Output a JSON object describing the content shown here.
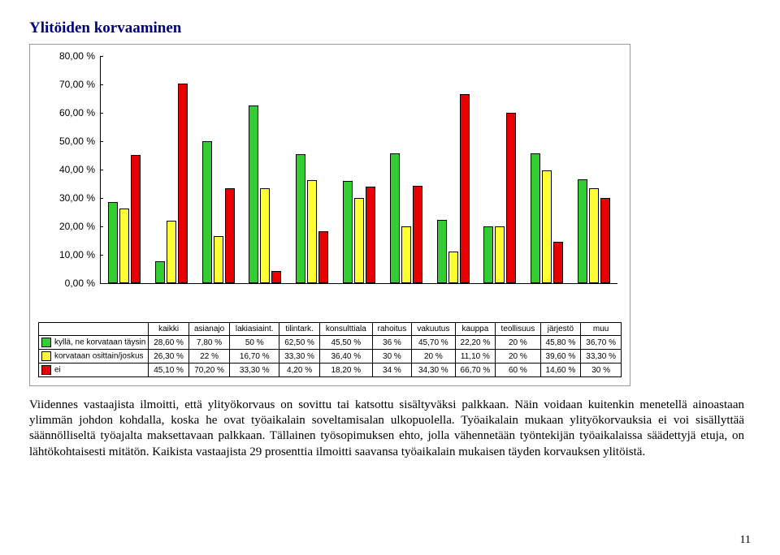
{
  "title": "Ylitöiden korvaaminen",
  "page_number": "11",
  "y_axis": {
    "ticks": [
      "0,00 %",
      "10,00 %",
      "20,00 %",
      "30,00 %",
      "40,00 %",
      "50,00 %",
      "60,00 %",
      "70,00 %",
      "80,00 %"
    ],
    "max": 80
  },
  "categories": [
    "kaikki",
    "asianajo",
    "lakiasiaint.",
    "tilintark.",
    "konsulttiala",
    "rahoitus",
    "vakuutus",
    "kauppa",
    "teollisuus",
    "järjestö",
    "muu"
  ],
  "series": [
    {
      "name": "kyllä, ne korvataan täysin",
      "color": "#33cc33",
      "values": [
        28.6,
        7.8,
        50,
        62.5,
        45.5,
        36,
        45.7,
        22.2,
        20,
        45.8,
        36.7
      ],
      "labels": [
        "28,60 %",
        "7,80 %",
        "50 %",
        "62,50 %",
        "45,50 %",
        "36 %",
        "45,70 %",
        "22,20 %",
        "20 %",
        "45,80 %",
        "36,70 %"
      ]
    },
    {
      "name": "korvataan osittain/joskus",
      "color": "#ffff33",
      "values": [
        26.3,
        22,
        16.7,
        33.3,
        36.4,
        30,
        20,
        11.1,
        20,
        39.6,
        33.3
      ],
      "labels": [
        "26,30 %",
        "22 %",
        "16,70 %",
        "33,30 %",
        "36,40 %",
        "30 %",
        "20 %",
        "11,10 %",
        "20 %",
        "39,60 %",
        "33,30 %"
      ]
    },
    {
      "name": "ei",
      "color": "#e60000",
      "values": [
        45.1,
        70.2,
        33.3,
        4.2,
        18.2,
        34,
        34.3,
        66.7,
        60,
        14.6,
        30
      ],
      "labels": [
        "45,10 %",
        "70,20 %",
        "33,30 %",
        "4,20 %",
        "18,20 %",
        "34 %",
        "34,30 %",
        "66,70 %",
        "60 %",
        "14,60 %",
        "30 %"
      ]
    }
  ],
  "paragraph": "Viidennes vastaajista ilmoitti, että ylityökorvaus on sovittu tai katsottu sisältyväksi palkkaan. Näin voidaan kuitenkin menetellä ainoastaan ylimmän johdon kohdalla, koska he ovat työaikalain soveltamisalan ulkopuolella. Työaikalain mukaan ylityökorvauksia ei voi sisällyttää säännölliseltä työajalta maksettavaan palkkaan. Tällainen työsopimuksen ehto, jolla vähennetään työntekijän työaikalaissa säädettyjä etuja, on lähtökohtaisesti mitätön. Kaikista vastaajista 29 prosenttia ilmoitti saavansa työaikalain mukaisen täyden korvauksen ylitöistä."
}
